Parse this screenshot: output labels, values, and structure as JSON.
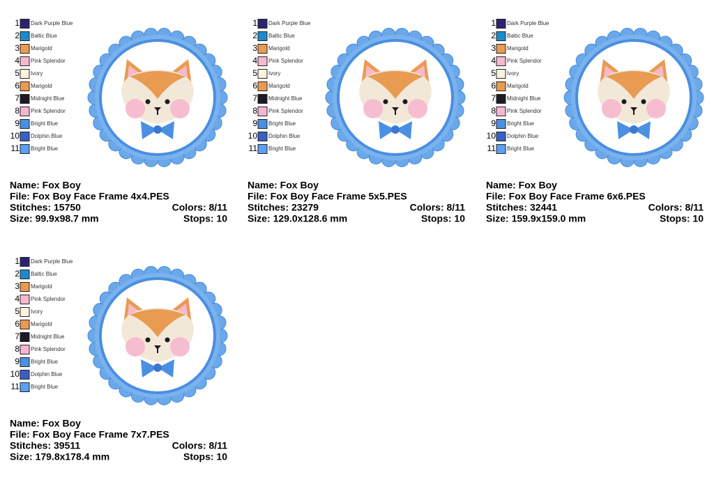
{
  "colors": [
    {
      "number": "1",
      "name": "Dark Purple Blue",
      "color": "#2b2372"
    },
    {
      "number": "2",
      "name": "Baltic Blue",
      "color": "#1f8acb"
    },
    {
      "number": "3",
      "name": "Marigold",
      "color": "#e99b52"
    },
    {
      "number": "4",
      "name": "Pink Splendor",
      "color": "#f6b9cb"
    },
    {
      "number": "5",
      "name": "Ivory",
      "color": "#fbf2df"
    },
    {
      "number": "6",
      "name": "Marigold",
      "color": "#e99b52"
    },
    {
      "number": "7",
      "name": "Midnight Blue",
      "color": "#1c1a22"
    },
    {
      "number": "8",
      "name": "Pink Splendor",
      "color": "#f5b6d2"
    },
    {
      "number": "9",
      "name": "Bright Blue",
      "color": "#4b8fe2"
    },
    {
      "number": "10",
      "name": "Dolphin Blue",
      "color": "#3b5fc2"
    },
    {
      "number": "11",
      "name": "Bright Blue",
      "color": "#5ba0f2"
    }
  ],
  "cards": [
    {
      "name": "Name: Fox Boy",
      "file": "File: Fox Boy Face Frame 4x4.PES",
      "stitches": "Stitches: 15750",
      "colors_count": "Colors: 8/11",
      "size": "Size: 99.9x98.7 mm",
      "stops": "Stops: 10"
    },
    {
      "name": "Name: Fox Boy",
      "file": "File: Fox Boy Face Frame 5x5.PES",
      "stitches": "Stitches: 23279",
      "colors_count": "Colors: 8/11",
      "size": "Size: 129.0x128.6 mm",
      "stops": "Stops: 10"
    },
    {
      "name": "Name: Fox Boy",
      "file": "File: Fox Boy Face Frame 6x6.PES",
      "stitches": "Stitches: 32441",
      "colors_count": "Colors: 8/11",
      "size": "Size: 159.9x159.0 mm",
      "stops": "Stops: 10"
    },
    {
      "name": "Name: Fox Boy",
      "file": "File: Fox Boy Face Frame 7x7.PES",
      "stitches": "Stitches: 39511",
      "colors_count": "Colors: 8/11",
      "size": "Size: 179.8x178.4 mm",
      "stops": "Stops: 10"
    }
  ]
}
